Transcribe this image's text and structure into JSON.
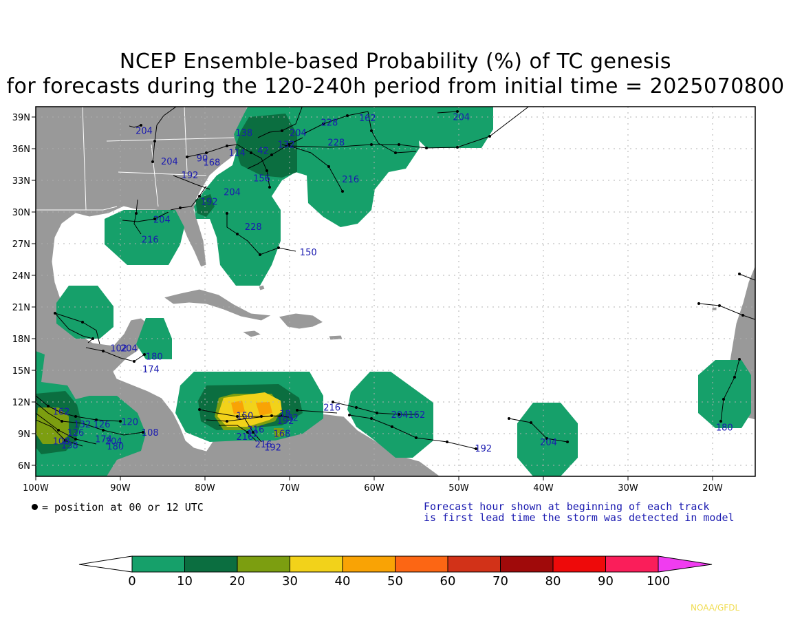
{
  "title": {
    "line1": "NCEP Ensemble-based Probability (%) of TC genesis",
    "line2": "for forecasts during the 120-240h period from initial time = 2025070800"
  },
  "axes": {
    "lat_labels": [
      "39N",
      "36N",
      "33N",
      "30N",
      "27N",
      "24N",
      "21N",
      "18N",
      "15N",
      "12N",
      "9N",
      "6N"
    ],
    "lon_labels": [
      "100W",
      "90W",
      "80W",
      "70W",
      "60W",
      "50W",
      "40W",
      "30W",
      "20W"
    ]
  },
  "colorbar": {
    "ticks": [
      "0",
      "10",
      "20",
      "30",
      "40",
      "50",
      "60",
      "70",
      "80",
      "90",
      "100"
    ],
    "colors": [
      "#ffffff",
      "#16a06a",
      "#0b6e40",
      "#7c9e10",
      "#f2d21a",
      "#f9a305",
      "#fc6614",
      "#d23218",
      "#a00a0a",
      "#ee0a0a",
      "#fa1e5a",
      "#f03cf0"
    ]
  },
  "notes": {
    "position_legend": "= position at 00 or 12 UTC",
    "forecast_hour_line1": "Forecast hour shown at beginning of each track",
    "forecast_hour_line2": "is first lead time the storm was detected in model"
  },
  "credit": "NOAA/GFDL",
  "track_labels": [
    {
      "text": "204",
      "lon": -88.2,
      "lat": 37.4
    },
    {
      "text": "204",
      "lon": -85.2,
      "lat": 34.5
    },
    {
      "text": "138",
      "lon": -76.4,
      "lat": 37.2
    },
    {
      "text": "114",
      "lon": -77.2,
      "lat": 35.3
    },
    {
      "text": "90",
      "lon": -81.0,
      "lat": 34.8
    },
    {
      "text": "168",
      "lon": -80.2,
      "lat": 34.4
    },
    {
      "text": "192",
      "lon": -82.8,
      "lat": 33.2
    },
    {
      "text": "204",
      "lon": -70.0,
      "lat": 37.2
    },
    {
      "text": "42",
      "lon": -73.8,
      "lat": 35.5
    },
    {
      "text": "132",
      "lon": -71.4,
      "lat": 36.1
    },
    {
      "text": "228",
      "lon": -66.3,
      "lat": 38.2
    },
    {
      "text": "162",
      "lon": -61.8,
      "lat": 38.6
    },
    {
      "text": "228",
      "lon": -65.5,
      "lat": 36.3
    },
    {
      "text": "204",
      "lon": -50.7,
      "lat": 38.7
    },
    {
      "text": "156",
      "lon": -74.3,
      "lat": 32.9
    },
    {
      "text": "216",
      "lon": -63.8,
      "lat": 32.8
    },
    {
      "text": "204",
      "lon": -77.8,
      "lat": 31.6
    },
    {
      "text": "192",
      "lon": -80.5,
      "lat": 30.7
    },
    {
      "text": "204",
      "lon": -86.1,
      "lat": 29.0
    },
    {
      "text": "228",
      "lon": -75.3,
      "lat": 28.3
    },
    {
      "text": "216",
      "lon": -87.5,
      "lat": 27.1
    },
    {
      "text": "150",
      "lon": -68.8,
      "lat": 25.9
    },
    {
      "text": "102",
      "lon": -91.2,
      "lat": 16.8
    },
    {
      "text": "204",
      "lon": -90.0,
      "lat": 16.8
    },
    {
      "text": "180",
      "lon": -87.0,
      "lat": 16.0
    },
    {
      "text": "174",
      "lon": -87.4,
      "lat": 14.8
    },
    {
      "text": "162",
      "lon": -98.0,
      "lat": 10.8
    },
    {
      "text": "132",
      "lon": -95.5,
      "lat": 9.6
    },
    {
      "text": "126",
      "lon": -93.2,
      "lat": 9.6
    },
    {
      "text": "120",
      "lon": -89.9,
      "lat": 9.8
    },
    {
      "text": "126",
      "lon": -96.3,
      "lat": 8.8
    },
    {
      "text": "174",
      "lon": -93.0,
      "lat": 8.2
    },
    {
      "text": "204",
      "lon": -91.8,
      "lat": 8.0
    },
    {
      "text": "108",
      "lon": -98.0,
      "lat": 8.0
    },
    {
      "text": "138",
      "lon": -97.0,
      "lat": 7.6
    },
    {
      "text": "180",
      "lon": -91.6,
      "lat": 7.5
    },
    {
      "text": "108",
      "lon": -87.5,
      "lat": 8.8
    },
    {
      "text": "150",
      "lon": -76.3,
      "lat": 10.4
    },
    {
      "text": "216",
      "lon": -75.0,
      "lat": 9.1
    },
    {
      "text": "216",
      "lon": -76.3,
      "lat": 8.4
    },
    {
      "text": "12",
      "lon": -75.0,
      "lat": 8.7
    },
    {
      "text": "216",
      "lon": -74.1,
      "lat": 7.7
    },
    {
      "text": "192",
      "lon": -73.0,
      "lat": 7.4
    },
    {
      "text": "168",
      "lon": -71.9,
      "lat": 8.7
    },
    {
      "text": "18",
      "lon": -71.2,
      "lat": 10.6
    },
    {
      "text": "32",
      "lon": -70.3,
      "lat": 10.2
    },
    {
      "text": "192",
      "lon": -71.5,
      "lat": 9.9
    },
    {
      "text": "216",
      "lon": -66.0,
      "lat": 11.2
    },
    {
      "text": "204162",
      "lon": -58.0,
      "lat": 10.5
    },
    {
      "text": "192",
      "lon": -48.1,
      "lat": 7.3
    },
    {
      "text": "204",
      "lon": -40.4,
      "lat": 7.9
    },
    {
      "text": "180",
      "lon": -19.6,
      "lat": 9.3
    }
  ]
}
